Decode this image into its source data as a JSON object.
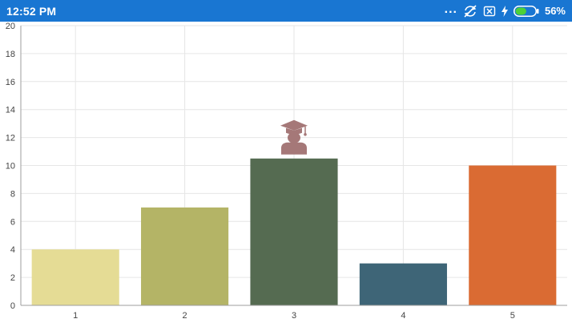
{
  "status_bar": {
    "time": "12:52 PM",
    "battery_percent": "56%",
    "battery_level": 0.56,
    "icons": [
      "more-dots-icon",
      "sync-off-icon",
      "sim-x-icon",
      "charging-bolt-icon",
      "battery-icon"
    ],
    "background_color": "#1976d2"
  },
  "chart_data": {
    "type": "bar",
    "categories": [
      "1",
      "2",
      "3",
      "4",
      "5"
    ],
    "values": [
      4,
      7,
      10.5,
      3,
      10
    ],
    "colors": [
      "#e5dc95",
      "#b4b466",
      "#556b51",
      "#3e6577",
      "#da6b33"
    ],
    "ylim": [
      0,
      20
    ],
    "yticks": [
      "0",
      "2",
      "4",
      "6",
      "8",
      "10",
      "12",
      "14",
      "16",
      "18",
      "20"
    ],
    "grid": true,
    "legend": "none",
    "highlight": {
      "category": "3",
      "icon": "graduate-icon",
      "color": "#a57878"
    }
  }
}
